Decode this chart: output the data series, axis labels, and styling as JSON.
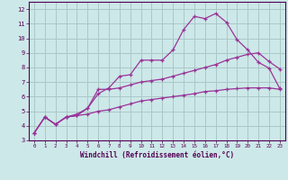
{
  "xlabel": "Windchill (Refroidissement éolien,°C)",
  "background_color": "#cde8e8",
  "grid_color": "#aac8c8",
  "line_color": "#993399",
  "xlim": [
    -0.5,
    23.5
  ],
  "ylim": [
    3,
    12.5
  ],
  "xticks": [
    0,
    1,
    2,
    3,
    4,
    5,
    6,
    7,
    8,
    9,
    10,
    11,
    12,
    13,
    14,
    15,
    16,
    17,
    18,
    19,
    20,
    21,
    22,
    23
  ],
  "yticks": [
    3,
    4,
    5,
    6,
    7,
    8,
    9,
    10,
    11,
    12
  ],
  "line1_x": [
    0,
    1,
    2,
    3,
    4,
    5,
    6,
    7,
    8,
    9,
    10,
    11,
    12,
    13,
    14,
    15,
    16,
    17,
    18,
    19,
    20,
    21,
    22,
    23
  ],
  "line1_y": [
    3.5,
    4.6,
    4.1,
    4.6,
    4.7,
    5.2,
    6.2,
    6.6,
    7.4,
    7.5,
    8.5,
    8.5,
    8.5,
    9.2,
    10.6,
    11.5,
    11.35,
    11.7,
    11.1,
    9.9,
    9.2,
    8.35,
    7.95,
    6.55
  ],
  "line2_x": [
    0,
    1,
    2,
    3,
    4,
    5,
    6,
    7,
    8,
    9,
    10,
    11,
    12,
    13,
    14,
    15,
    16,
    17,
    18,
    19,
    20,
    21,
    22,
    23
  ],
  "line2_y": [
    3.5,
    4.6,
    4.1,
    4.6,
    4.7,
    4.8,
    5.0,
    5.1,
    5.3,
    5.5,
    5.7,
    5.8,
    5.9,
    6.0,
    6.1,
    6.2,
    6.35,
    6.4,
    6.5,
    6.55,
    6.6,
    6.6,
    6.6,
    6.5
  ],
  "line3_x": [
    0,
    1,
    2,
    3,
    4,
    5,
    6,
    7,
    8,
    9,
    10,
    11,
    12,
    13,
    14,
    15,
    16,
    17,
    18,
    19,
    20,
    21,
    22,
    23
  ],
  "line3_y": [
    3.5,
    4.6,
    4.1,
    4.6,
    4.8,
    5.2,
    6.5,
    6.5,
    6.6,
    6.8,
    7.0,
    7.1,
    7.2,
    7.4,
    7.6,
    7.8,
    8.0,
    8.2,
    8.5,
    8.7,
    8.9,
    9.0,
    8.4,
    7.9
  ]
}
